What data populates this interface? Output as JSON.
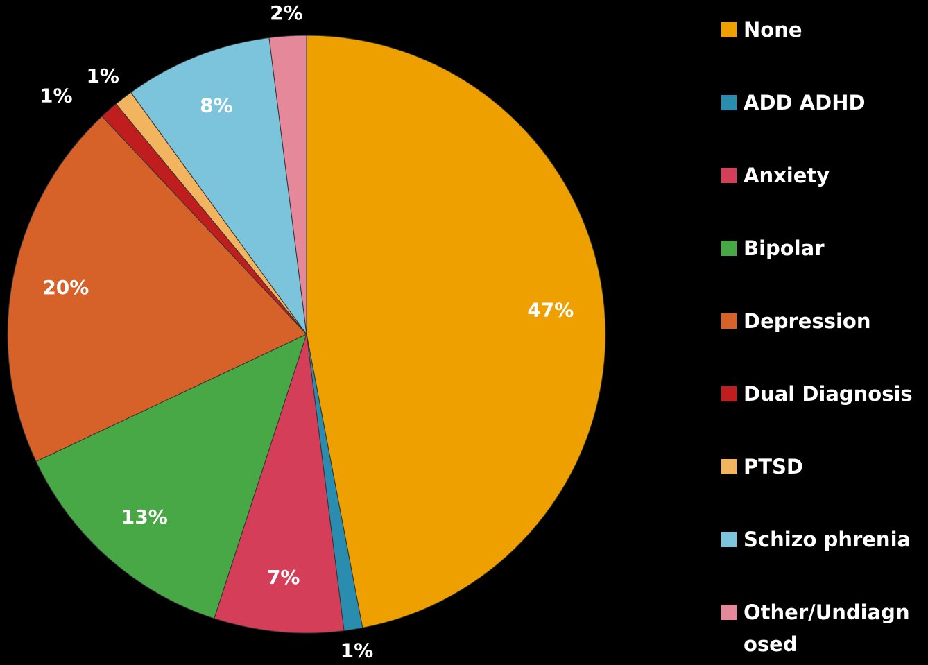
{
  "chart_data": {
    "type": "pie",
    "categories": [
      "None",
      "ADD ADHD",
      "Anxiety",
      "Bipolar",
      "Depression",
      "Dual Diagnosis",
      "PTSD",
      "Schizo phrenia",
      "Other/Undiagnosed"
    ],
    "values": [
      47,
      1,
      7,
      13,
      20,
      1,
      1,
      8,
      2
    ],
    "value_labels": [
      "47%",
      "1%",
      "7%",
      "13%",
      "20%",
      "1%",
      "1%",
      "8%",
      "2%"
    ],
    "colors": [
      "#eda000",
      "#2a8cae",
      "#d43e58",
      "#48a846",
      "#d6622a",
      "#c01e1e",
      "#f2b45e",
      "#7cc4dc",
      "#e4889a"
    ],
    "legend": "right"
  }
}
